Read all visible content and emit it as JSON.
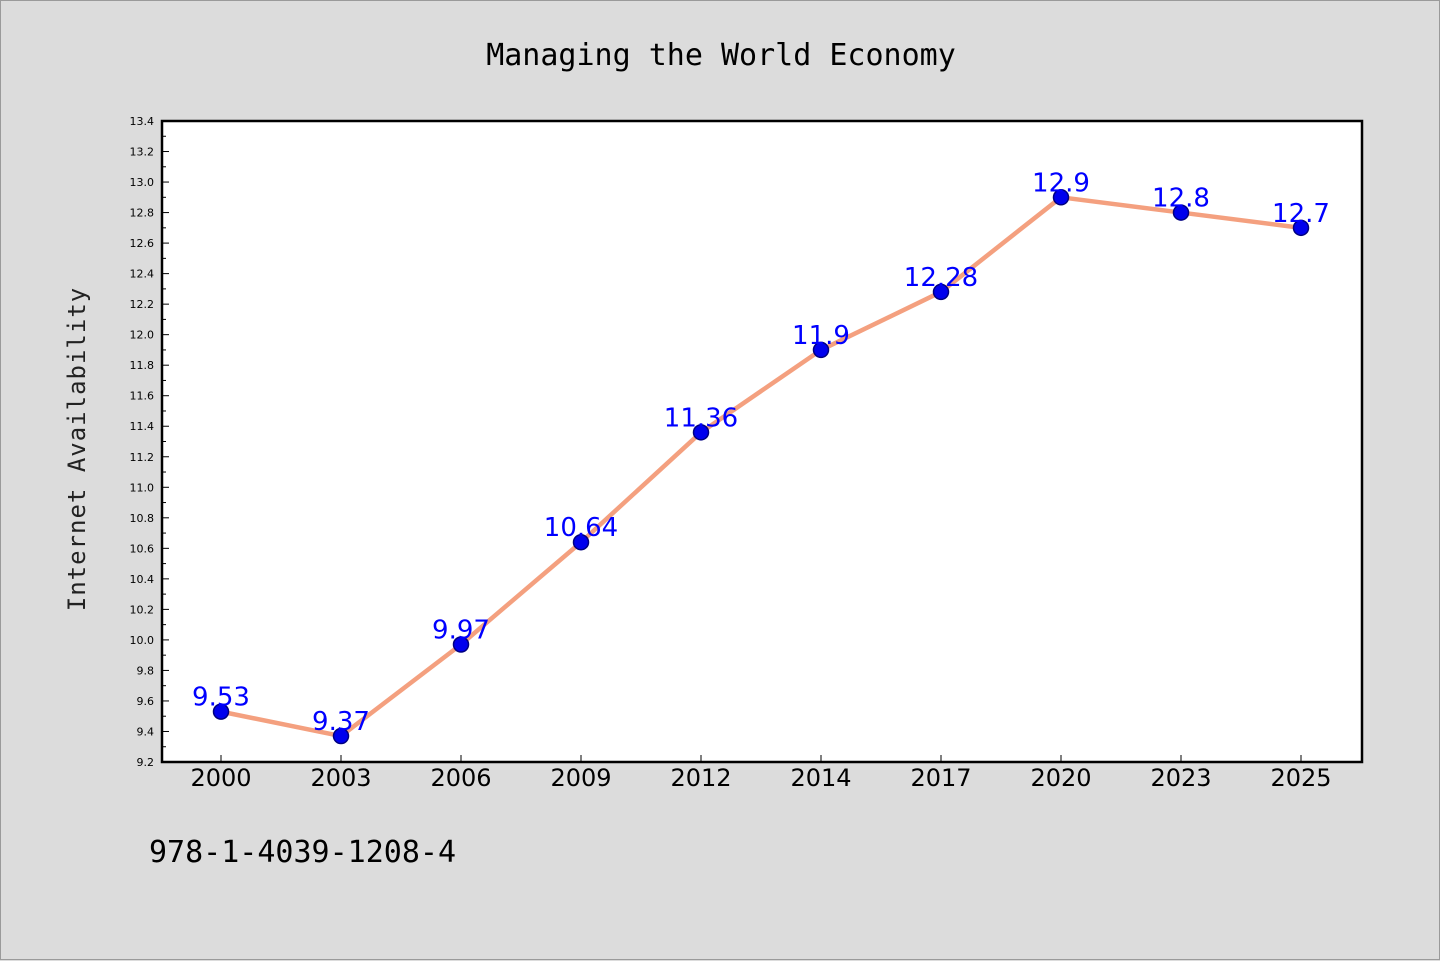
{
  "chart_data": {
    "type": "line",
    "title": "Managing the World Economy",
    "xlabel": "",
    "ylabel": "Internet Availability",
    "categories": [
      "2000",
      "2003",
      "2006",
      "2009",
      "2012",
      "2014",
      "2017",
      "2020",
      "2023",
      "2025"
    ],
    "values": [
      9.53,
      9.37,
      9.97,
      10.64,
      11.36,
      11.9,
      12.28,
      12.9,
      12.8,
      12.7
    ],
    "data_labels": [
      "9.53",
      "9.37",
      "9.97",
      "10.64",
      "11.36",
      "11.9",
      "12.28",
      "12.9",
      "12.8",
      "12.7"
    ],
    "ylim": [
      9.2,
      13.4
    ],
    "yticks": [
      "9.2",
      "9.4",
      "9.6",
      "9.8",
      "10.0",
      "10.2",
      "10.4",
      "10.6",
      "10.8",
      "11.0",
      "11.2",
      "11.4",
      "11.6",
      "11.8",
      "12.0",
      "12.2",
      "12.4",
      "12.6",
      "12.8",
      "13.0",
      "13.2",
      "13.4"
    ],
    "grid": false,
    "legend": false,
    "colors": {
      "line": "#f4a07f",
      "marker": "#0000ee",
      "marker_edge": "#000080",
      "data_label": "#0000ff"
    }
  },
  "footer_text": "978-1-4039-1208-4"
}
